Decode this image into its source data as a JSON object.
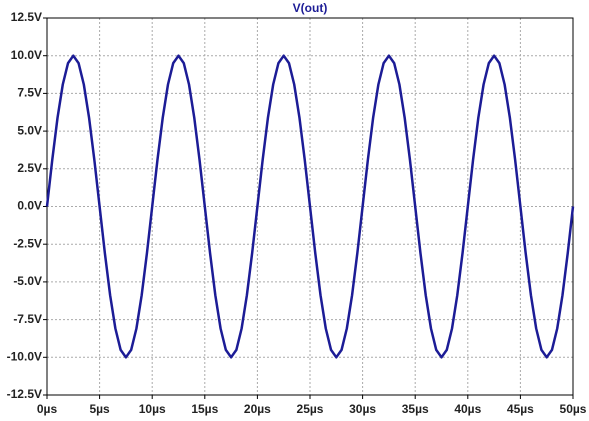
{
  "chart_data": {
    "type": "line",
    "x": [
      0,
      0.5,
      1,
      1.5,
      2,
      2.5,
      3,
      3.5,
      4,
      4.5,
      5,
      5.5,
      6,
      6.5,
      7,
      7.5,
      8,
      8.5,
      9,
      9.5,
      10,
      10.5,
      11,
      11.5,
      12,
      12.5,
      13,
      13.5,
      14,
      14.5,
      15,
      15.5,
      16,
      16.5,
      17,
      17.5,
      18,
      18.5,
      19,
      19.5,
      20,
      20.5,
      21,
      21.5,
      22,
      22.5,
      23,
      23.5,
      24,
      24.5,
      25,
      25.5,
      26,
      26.5,
      27,
      27.5,
      28,
      28.5,
      29,
      29.5,
      30,
      30.5,
      31,
      31.5,
      32,
      32.5,
      33,
      33.5,
      34,
      34.5,
      35,
      35.5,
      36,
      36.5,
      37,
      37.5,
      38,
      38.5,
      39,
      39.5,
      40,
      40.5,
      41,
      41.5,
      42,
      42.5,
      43,
      43.5,
      44,
      44.5,
      45,
      45.5,
      46,
      46.5,
      47,
      47.5,
      48,
      48.5,
      49,
      49.5,
      50
    ],
    "series": [
      {
        "name": "V(out)",
        "color": "#1c1c96",
        "values": [
          0,
          3.09,
          5.88,
          8.09,
          9.51,
          10,
          9.51,
          8.09,
          5.88,
          3.09,
          0,
          -3.09,
          -5.88,
          -8.09,
          -9.51,
          -10,
          -9.51,
          -8.09,
          -5.88,
          -3.09,
          0,
          3.09,
          5.88,
          8.09,
          9.51,
          10,
          9.51,
          8.09,
          5.88,
          3.09,
          0,
          -3.09,
          -5.88,
          -8.09,
          -9.51,
          -10,
          -9.51,
          -8.09,
          -5.88,
          -3.09,
          0,
          3.09,
          5.88,
          8.09,
          9.51,
          10,
          9.51,
          8.09,
          5.88,
          3.09,
          0,
          -3.09,
          -5.88,
          -8.09,
          -9.51,
          -10,
          -9.51,
          -8.09,
          -5.88,
          -3.09,
          0,
          3.09,
          5.88,
          8.09,
          9.51,
          10,
          9.51,
          8.09,
          5.88,
          3.09,
          0,
          -3.09,
          -5.88,
          -8.09,
          -9.51,
          -10,
          -9.51,
          -8.09,
          -5.88,
          -3.09,
          0,
          3.09,
          5.88,
          8.09,
          9.51,
          10,
          9.51,
          8.09,
          5.88,
          3.09,
          0,
          -3.09,
          -5.88,
          -8.09,
          -9.51,
          -10,
          -9.51,
          -8.09,
          -5.88,
          -3.09,
          0
        ]
      }
    ],
    "xlim": [
      0,
      50
    ],
    "xticks": [
      {
        "value": 0,
        "label": "0µs"
      },
      {
        "value": 5,
        "label": "5µs"
      },
      {
        "value": 10,
        "label": "10µs"
      },
      {
        "value": 15,
        "label": "15µs"
      },
      {
        "value": 20,
        "label": "20µs"
      },
      {
        "value": 25,
        "label": "25µs"
      },
      {
        "value": 30,
        "label": "30µs"
      },
      {
        "value": 35,
        "label": "35µs"
      },
      {
        "value": 40,
        "label": "40µs"
      },
      {
        "value": 45,
        "label": "45µs"
      },
      {
        "value": 50,
        "label": "50µs"
      }
    ],
    "ylim": [
      -12.5,
      12.5
    ],
    "yticks": [
      {
        "value": 12.5,
        "label": "12.5V"
      },
      {
        "value": 10,
        "label": "10.0V"
      },
      {
        "value": 7.5,
        "label": "7.5V"
      },
      {
        "value": 5,
        "label": "5.0V"
      },
      {
        "value": 2.5,
        "label": "2.5V"
      },
      {
        "value": 0,
        "label": "0.0V"
      },
      {
        "value": -2.5,
        "label": "-2.5V"
      },
      {
        "value": -5,
        "label": "-5.0V"
      },
      {
        "value": -7.5,
        "label": "-7.5V"
      },
      {
        "value": -10,
        "label": "-10.0V"
      },
      {
        "value": -12.5,
        "label": "-12.5V"
      }
    ],
    "grid": true
  }
}
